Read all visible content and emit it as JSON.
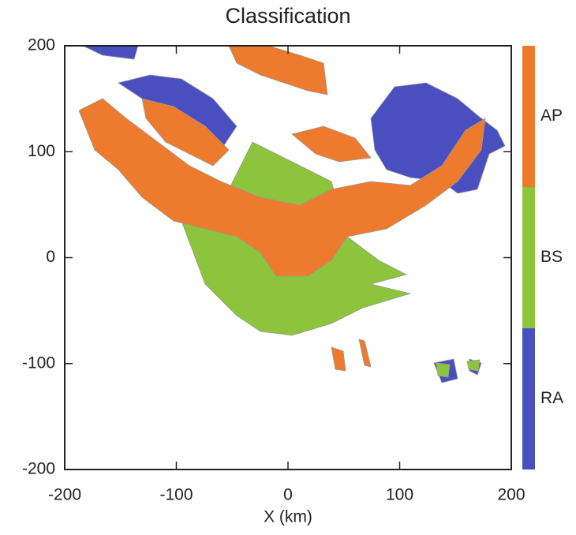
{
  "chart_data": {
    "type": "classification-map",
    "title": "Classification",
    "xlabel": "X (km)",
    "xlim": [
      -200,
      200
    ],
    "ylim": [
      -200,
      200
    ],
    "xticks": [
      -200,
      -100,
      0,
      100,
      200
    ],
    "yticks": [
      -200,
      -100,
      0,
      100,
      200
    ],
    "classes": [
      {
        "name": "AP",
        "color": "#ee7a2e"
      },
      {
        "name": "BS",
        "color": "#8cc43c"
      },
      {
        "name": "RA",
        "color": "#4a4fc0"
      }
    ]
  }
}
